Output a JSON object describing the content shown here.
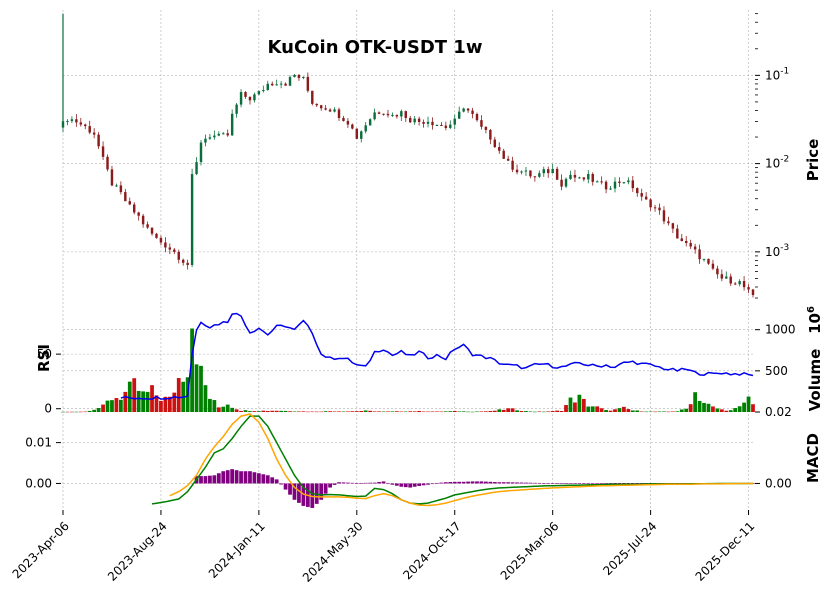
{
  "chart_data": {
    "type": "candlestick",
    "title": "KuCoin OTK-USDT 1w",
    "colors": {
      "up": "#0a6e3c",
      "down": "#8b1a1a",
      "vol_up": "#008000",
      "vol_down": "#cc1111",
      "rsi": "#0000ee",
      "macd": "#008000",
      "signal": "#ffa500",
      "hist": "#800080",
      "grid": "#b0b0b0"
    },
    "x_tick_labels": [
      "2023-Apr-06",
      "2023-Aug-24",
      "2024-Jan-11",
      "2024-May-30",
      "2024-Oct-17",
      "2025-Mar-06",
      "2025-Jul-24",
      "2025-Dec-11"
    ],
    "price_panel": {
      "ylabel": "Price",
      "scale": "log",
      "ylim": [
        0.00025,
        0.55
      ],
      "tick_labels": [
        "10^-1",
        "10^-2",
        "10^-3"
      ],
      "tick_values": [
        0.1,
        0.01,
        0.001
      ]
    },
    "rsi_panel": {
      "ylabel": "RSI",
      "ylim": [
        -3,
        95
      ],
      "tick_labels": [
        "50",
        "0"
      ],
      "tick_values": [
        50,
        0
      ]
    },
    "volume_panel": {
      "ylabel": "Volume",
      "unit_label": "10^6",
      "ylim": [
        0,
        1300
      ],
      "tick_labels": [
        "1000",
        "500"
      ],
      "tick_values": [
        1000,
        500
      ]
    },
    "macd_panel": {
      "ylabel": "MACD",
      "ylim": [
        -0.0065,
        0.0175
      ],
      "left_tick_labels": [
        "0.01",
        "0.00"
      ],
      "left_tick_values": [
        0.01,
        0.0
      ],
      "right_tick_labels": [
        "0.02",
        "0.00"
      ],
      "right_tick_values": [
        0.02,
        0.0
      ]
    },
    "price_anchors": [
      [
        0,
        0.028
      ],
      [
        1,
        0.033
      ],
      [
        3,
        0.03
      ],
      [
        5,
        0.026
      ],
      [
        7,
        0.022
      ],
      [
        9,
        0.011
      ],
      [
        11,
        0.006
      ],
      [
        13,
        0.0045
      ],
      [
        15,
        0.0032
      ],
      [
        17,
        0.0025
      ],
      [
        19,
        0.0018
      ],
      [
        21,
        0.0014
      ],
      [
        23,
        0.0012
      ],
      [
        25,
        0.001
      ],
      [
        27,
        0.0008
      ],
      [
        28,
        0.00072
      ],
      [
        29,
        0.007
      ],
      [
        30,
        0.01
      ],
      [
        31,
        0.018
      ],
      [
        33,
        0.021
      ],
      [
        35,
        0.02
      ],
      [
        37,
        0.021
      ],
      [
        38,
        0.035
      ],
      [
        40,
        0.06
      ],
      [
        42,
        0.055
      ],
      [
        44,
        0.063
      ],
      [
        46,
        0.08
      ],
      [
        48,
        0.085
      ],
      [
        50,
        0.082
      ],
      [
        52,
        0.1
      ],
      [
        54,
        0.09
      ],
      [
        56,
        0.05
      ],
      [
        58,
        0.045
      ],
      [
        60,
        0.042
      ],
      [
        62,
        0.036
      ],
      [
        64,
        0.03
      ],
      [
        66,
        0.02
      ],
      [
        68,
        0.028
      ],
      [
        70,
        0.038
      ],
      [
        72,
        0.04
      ],
      [
        74,
        0.035
      ],
      [
        76,
        0.038
      ],
      [
        78,
        0.032
      ],
      [
        80,
        0.03
      ],
      [
        82,
        0.031
      ],
      [
        84,
        0.028
      ],
      [
        86,
        0.026
      ],
      [
        88,
        0.03
      ],
      [
        90,
        0.045
      ],
      [
        92,
        0.035
      ],
      [
        94,
        0.025
      ],
      [
        96,
        0.02
      ],
      [
        98,
        0.014
      ],
      [
        100,
        0.01
      ],
      [
        102,
        0.0085
      ],
      [
        104,
        0.0078
      ],
      [
        106,
        0.007
      ],
      [
        108,
        0.008
      ],
      [
        110,
        0.0085
      ],
      [
        112,
        0.006
      ],
      [
        114,
        0.0075
      ],
      [
        116,
        0.0065
      ],
      [
        118,
        0.007
      ],
      [
        120,
        0.006
      ],
      [
        122,
        0.0055
      ],
      [
        124,
        0.006
      ],
      [
        126,
        0.0065
      ],
      [
        128,
        0.0055
      ],
      [
        130,
        0.004
      ],
      [
        132,
        0.0035
      ],
      [
        134,
        0.0028
      ],
      [
        136,
        0.002
      ],
      [
        138,
        0.0015
      ],
      [
        140,
        0.0012
      ],
      [
        142,
        0.001
      ],
      [
        144,
        0.0008
      ],
      [
        146,
        0.0006
      ],
      [
        148,
        0.0005
      ],
      [
        150,
        0.00048
      ],
      [
        152,
        0.00045
      ],
      [
        154,
        0.00035
      ],
      [
        155,
        0.0003
      ]
    ],
    "rsi_anchors": [
      [
        0,
        10
      ],
      [
        5,
        10
      ],
      [
        10,
        10
      ],
      [
        20,
        10
      ],
      [
        27,
        11
      ],
      [
        28,
        12
      ],
      [
        29,
        50
      ],
      [
        30,
        72
      ],
      [
        31,
        80
      ],
      [
        33,
        75
      ],
      [
        35,
        78
      ],
      [
        37,
        80
      ],
      [
        38,
        88
      ],
      [
        40,
        85
      ],
      [
        42,
        70
      ],
      [
        44,
        74
      ],
      [
        46,
        68
      ],
      [
        48,
        75
      ],
      [
        50,
        76
      ],
      [
        52,
        72
      ],
      [
        54,
        80
      ],
      [
        56,
        70
      ],
      [
        58,
        50
      ],
      [
        60,
        46
      ],
      [
        62,
        47
      ],
      [
        64,
        45
      ],
      [
        66,
        40
      ],
      [
        68,
        38
      ],
      [
        70,
        52
      ],
      [
        72,
        55
      ],
      [
        74,
        49
      ],
      [
        76,
        52
      ],
      [
        78,
        48
      ],
      [
        80,
        52
      ],
      [
        82,
        47
      ],
      [
        84,
        49
      ],
      [
        86,
        46
      ],
      [
        88,
        55
      ],
      [
        90,
        58
      ],
      [
        92,
        50
      ],
      [
        94,
        48
      ],
      [
        96,
        46
      ],
      [
        98,
        42
      ],
      [
        100,
        40
      ],
      [
        102,
        39
      ],
      [
        104,
        37
      ],
      [
        106,
        40
      ],
      [
        108,
        41
      ],
      [
        110,
        39
      ],
      [
        112,
        38
      ],
      [
        114,
        40
      ],
      [
        116,
        42
      ],
      [
        118,
        40
      ],
      [
        120,
        39
      ],
      [
        122,
        40
      ],
      [
        124,
        38
      ],
      [
        126,
        42
      ],
      [
        128,
        43
      ],
      [
        130,
        41
      ],
      [
        132,
        40
      ],
      [
        134,
        38
      ],
      [
        136,
        36
      ],
      [
        138,
        35
      ],
      [
        140,
        36
      ],
      [
        142,
        33
      ],
      [
        144,
        32
      ],
      [
        146,
        32
      ],
      [
        148,
        33
      ],
      [
        150,
        32
      ],
      [
        152,
        32
      ],
      [
        154,
        31
      ],
      [
        155,
        31
      ]
    ],
    "volume_anchors": [
      [
        0,
        2
      ],
      [
        5,
        5
      ],
      [
        9,
        70
      ],
      [
        11,
        180
      ],
      [
        13,
        200
      ],
      [
        16,
        330
      ],
      [
        18,
        220
      ],
      [
        20,
        260
      ],
      [
        22,
        180
      ],
      [
        24,
        160
      ],
      [
        26,
        430
      ],
      [
        28,
        620
      ],
      [
        29,
        1250
      ],
      [
        30,
        850
      ],
      [
        31,
        480
      ],
      [
        33,
        180
      ],
      [
        35,
        60
      ],
      [
        37,
        110
      ],
      [
        38,
        70
      ],
      [
        40,
        20
      ],
      [
        44,
        15
      ],
      [
        48,
        18
      ],
      [
        52,
        10
      ],
      [
        56,
        5
      ],
      [
        60,
        10
      ],
      [
        64,
        8
      ],
      [
        68,
        15
      ],
      [
        72,
        5
      ],
      [
        76,
        8
      ],
      [
        80,
        10
      ],
      [
        84,
        5
      ],
      [
        88,
        10
      ],
      [
        92,
        5
      ],
      [
        96,
        10
      ],
      [
        100,
        40
      ],
      [
        102,
        30
      ],
      [
        104,
        10
      ],
      [
        106,
        5
      ],
      [
        108,
        5
      ],
      [
        110,
        10
      ],
      [
        112,
        20
      ],
      [
        114,
        150
      ],
      [
        116,
        180
      ],
      [
        118,
        90
      ],
      [
        120,
        60
      ],
      [
        122,
        20
      ],
      [
        124,
        30
      ],
      [
        126,
        50
      ],
      [
        128,
        20
      ],
      [
        130,
        10
      ],
      [
        132,
        5
      ],
      [
        136,
        5
      ],
      [
        138,
        10
      ],
      [
        140,
        40
      ],
      [
        142,
        250
      ],
      [
        144,
        120
      ],
      [
        146,
        60
      ],
      [
        148,
        30
      ],
      [
        150,
        20
      ],
      [
        152,
        60
      ],
      [
        154,
        180
      ],
      [
        155,
        130
      ]
    ],
    "macd_anchors": [
      [
        20,
        -0.005
      ],
      [
        23,
        -0.0045
      ],
      [
        26,
        -0.0038
      ],
      [
        28,
        -0.002
      ],
      [
        30,
        0.001
      ],
      [
        32,
        0.004
      ],
      [
        34,
        0.0075
      ],
      [
        36,
        0.0085
      ],
      [
        38,
        0.011
      ],
      [
        40,
        0.014
      ],
      [
        42,
        0.0165
      ],
      [
        44,
        0.0165
      ],
      [
        46,
        0.014
      ],
      [
        48,
        0.01
      ],
      [
        50,
        0.006
      ],
      [
        52,
        0.002
      ],
      [
        54,
        -0.001
      ],
      [
        56,
        -0.0025
      ],
      [
        58,
        -0.0028
      ],
      [
        60,
        -0.0027
      ],
      [
        62,
        -0.0028
      ],
      [
        64,
        -0.003
      ],
      [
        66,
        -0.0032
      ],
      [
        68,
        -0.0031
      ],
      [
        70,
        -0.0012
      ],
      [
        72,
        -0.0015
      ],
      [
        74,
        -0.0025
      ],
      [
        76,
        -0.004
      ],
      [
        78,
        -0.0048
      ],
      [
        80,
        -0.005
      ],
      [
        82,
        -0.0048
      ],
      [
        84,
        -0.0042
      ],
      [
        86,
        -0.0036
      ],
      [
        88,
        -0.0028
      ],
      [
        90,
        -0.0024
      ],
      [
        92,
        -0.002
      ],
      [
        94,
        -0.0016
      ],
      [
        96,
        -0.0013
      ],
      [
        98,
        -0.0011
      ],
      [
        100,
        -0.001
      ],
      [
        104,
        -0.0008
      ],
      [
        108,
        -0.0006
      ],
      [
        112,
        -0.0005
      ],
      [
        116,
        -0.0004
      ],
      [
        120,
        -0.0003
      ],
      [
        124,
        -0.0002
      ],
      [
        128,
        -0.0002
      ],
      [
        132,
        -0.0001
      ],
      [
        136,
        -0.0001
      ],
      [
        140,
        -0.0001
      ],
      [
        144,
        -5e-05
      ],
      [
        148,
        0
      ],
      [
        152,
        0
      ],
      [
        155,
        0
      ]
    ],
    "signal_anchors": [
      [
        24,
        -0.003
      ],
      [
        26,
        -0.002
      ],
      [
        28,
        -0.0005
      ],
      [
        30,
        0.002
      ],
      [
        32,
        0.006
      ],
      [
        34,
        0.009
      ],
      [
        36,
        0.0115
      ],
      [
        38,
        0.0145
      ],
      [
        40,
        0.0165
      ],
      [
        42,
        0.017
      ],
      [
        44,
        0.015
      ],
      [
        46,
        0.011
      ],
      [
        48,
        0.006
      ],
      [
        50,
        0.002
      ],
      [
        52,
        -0.001
      ],
      [
        54,
        -0.0026
      ],
      [
        56,
        -0.0032
      ],
      [
        58,
        -0.0033
      ],
      [
        60,
        -0.0033
      ],
      [
        62,
        -0.0033
      ],
      [
        64,
        -0.0034
      ],
      [
        66,
        -0.0036
      ],
      [
        68,
        -0.0037
      ],
      [
        70,
        -0.003
      ],
      [
        72,
        -0.0025
      ],
      [
        74,
        -0.003
      ],
      [
        76,
        -0.004
      ],
      [
        78,
        -0.0048
      ],
      [
        80,
        -0.0053
      ],
      [
        82,
        -0.0054
      ],
      [
        84,
        -0.0052
      ],
      [
        86,
        -0.0048
      ],
      [
        88,
        -0.0042
      ],
      [
        90,
        -0.0036
      ],
      [
        92,
        -0.0031
      ],
      [
        94,
        -0.0027
      ],
      [
        96,
        -0.0023
      ],
      [
        98,
        -0.002
      ],
      [
        100,
        -0.0018
      ],
      [
        104,
        -0.0015
      ],
      [
        108,
        -0.0012
      ],
      [
        112,
        -0.001
      ],
      [
        116,
        -0.0008
      ],
      [
        120,
        -0.0006
      ],
      [
        124,
        -0.0005
      ],
      [
        128,
        -0.0004
      ],
      [
        132,
        -0.0003
      ],
      [
        136,
        -0.0002
      ],
      [
        140,
        -0.0002
      ],
      [
        144,
        -0.0001
      ],
      [
        148,
        -0.0001
      ],
      [
        152,
        0
      ],
      [
        155,
        0
      ]
    ],
    "hist_anchors": [
      [
        32,
        0.0018
      ],
      [
        34,
        0.002
      ],
      [
        36,
        0.003
      ],
      [
        38,
        0.0035
      ],
      [
        40,
        0.003
      ],
      [
        42,
        0.003
      ],
      [
        44,
        0.0025
      ],
      [
        46,
        0.002
      ],
      [
        48,
        0.001
      ],
      [
        50,
        -0.0015
      ],
      [
        52,
        -0.004
      ],
      [
        54,
        -0.0055
      ],
      [
        56,
        -0.006
      ],
      [
        58,
        -0.004
      ],
      [
        60,
        -0.001
      ],
      [
        62,
        0.0003
      ],
      [
        64,
        0.0002
      ],
      [
        66,
        0.0001
      ],
      [
        70,
        0.0002
      ],
      [
        72,
        0.0005
      ],
      [
        74,
        -0.0003
      ],
      [
        76,
        -0.0008
      ],
      [
        78,
        -0.001
      ],
      [
        80,
        -0.0006
      ],
      [
        82,
        -0.0003
      ],
      [
        84,
        0.0001
      ],
      [
        86,
        0.0003
      ],
      [
        88,
        0.0004
      ],
      [
        90,
        0.0004
      ],
      [
        92,
        0.0005
      ],
      [
        94,
        0.0005
      ],
      [
        96,
        0.0004
      ],
      [
        98,
        0.0003
      ],
      [
        100,
        0.0003
      ],
      [
        104,
        0.0002
      ],
      [
        108,
        0.0001
      ],
      [
        112,
        0.0001
      ],
      [
        116,
        0.0001
      ],
      [
        120,
        0.0001
      ],
      [
        124,
        0.0001
      ],
      [
        128,
        0.0001
      ],
      [
        132,
        0.0001
      ],
      [
        136,
        0.0001
      ],
      [
        140,
        0.0001
      ],
      [
        144,
        0.0001
      ],
      [
        148,
        0.0001
      ],
      [
        152,
        0.0001
      ],
      [
        155,
        0.0001
      ]
    ]
  }
}
